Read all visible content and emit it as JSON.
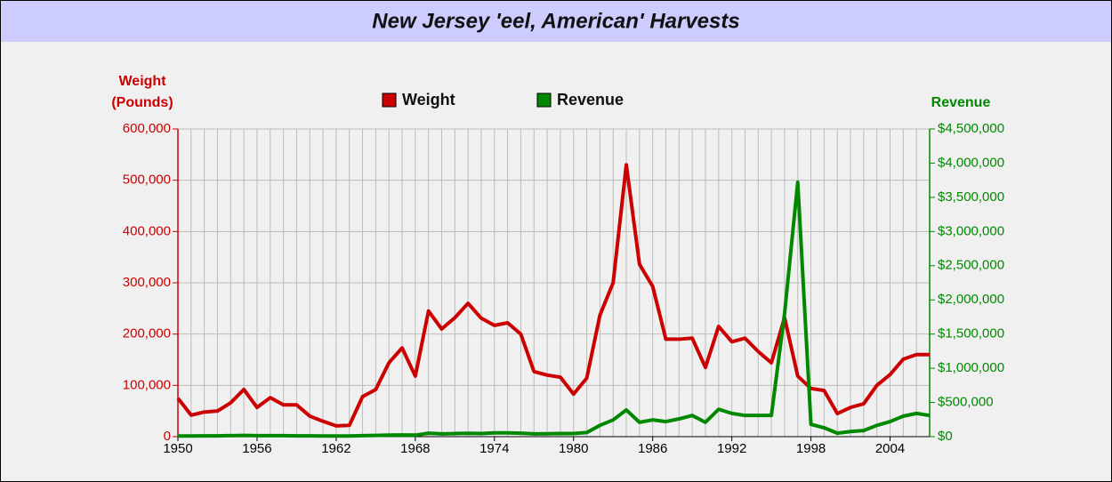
{
  "chart_data": {
    "type": "line",
    "title": "New Jersey 'eel, American' Harvests",
    "ylabel": [
      "Weight",
      "(Pounds)"
    ],
    "y2label": "Revenue",
    "legend": "top",
    "grid": true,
    "x": [
      1950,
      1951,
      1952,
      1953,
      1954,
      1955,
      1956,
      1957,
      1958,
      1959,
      1960,
      1961,
      1962,
      1963,
      1964,
      1965,
      1966,
      1967,
      1968,
      1969,
      1970,
      1971,
      1972,
      1973,
      1974,
      1975,
      1976,
      1977,
      1978,
      1979,
      1980,
      1981,
      1982,
      1983,
      1984,
      1985,
      1986,
      1987,
      1988,
      1989,
      1990,
      1991,
      1992,
      1993,
      1994,
      1995,
      1996,
      1997,
      1998,
      1999,
      2000,
      2001,
      2002,
      2003,
      2004,
      2005,
      2006,
      2007
    ],
    "xlim": [
      1950,
      2007
    ],
    "xticks": [
      1950,
      1956,
      1962,
      1968,
      1974,
      1980,
      1986,
      1992,
      1998,
      2004
    ],
    "ylim": [
      0,
      600000
    ],
    "yticks": [
      0,
      {
        "value": 100000,
        "label": "100,000"
      },
      {
        "value": 200000,
        "label": "200,000"
      },
      {
        "value": 300000,
        "label": "300,000"
      },
      {
        "value": 400000,
        "label": "400,000"
      },
      {
        "value": 500000,
        "label": "500,000"
      },
      {
        "value": 600000,
        "label": "600,000"
      }
    ],
    "y2lim": [
      0,
      4500000
    ],
    "y2ticks": [
      {
        "value": 0,
        "label": "$0"
      },
      {
        "value": 500000,
        "label": "$500,000"
      },
      {
        "value": 1000000,
        "label": "$1,000,000"
      },
      {
        "value": 1500000,
        "label": "$1,500,000"
      },
      {
        "value": 2000000,
        "label": "$2,000,000"
      },
      {
        "value": 2500000,
        "label": "$2,500,000"
      },
      {
        "value": 3000000,
        "label": "$3,000,000"
      },
      {
        "value": 3500000,
        "label": "$3,500,000"
      },
      {
        "value": 4000000,
        "label": "$4,000,000"
      },
      {
        "value": 4500000,
        "label": "$4,500,000"
      }
    ],
    "series": [
      {
        "name": "Weight",
        "color": "#cc0000",
        "axis": "y",
        "values": [
          75000,
          42000,
          48000,
          50000,
          66000,
          92000,
          57000,
          76000,
          62000,
          62000,
          40000,
          30000,
          21000,
          22000,
          78000,
          92000,
          144000,
          173000,
          118000,
          245000,
          210000,
          232000,
          260000,
          231000,
          217000,
          222000,
          200000,
          127000,
          120000,
          116000,
          83000,
          114000,
          237000,
          300000,
          530000,
          336000,
          293000,
          190000,
          190000,
          192000,
          135000,
          215000,
          185000,
          192000,
          166000,
          144000,
          232000,
          118000,
          94000,
          90000,
          45000,
          57000,
          64000,
          100000,
          121000,
          151000,
          160000,
          160000
        ]
      },
      {
        "name": "Revenue",
        "color": "#008800",
        "axis": "y2",
        "values": [
          10000,
          10000,
          12000,
          12000,
          15000,
          18000,
          15000,
          15000,
          14000,
          12000,
          12000,
          10000,
          10000,
          10000,
          15000,
          18000,
          22000,
          25000,
          22000,
          50000,
          40000,
          45000,
          48000,
          45000,
          55000,
          55000,
          50000,
          40000,
          42000,
          45000,
          45000,
          60000,
          165000,
          245000,
          390000,
          210000,
          245000,
          220000,
          260000,
          310000,
          210000,
          400000,
          340000,
          310000,
          310000,
          310000,
          1800000,
          3720000,
          180000,
          130000,
          50000,
          75000,
          90000,
          165000,
          220000,
          300000,
          340000,
          310000
        ]
      }
    ]
  }
}
